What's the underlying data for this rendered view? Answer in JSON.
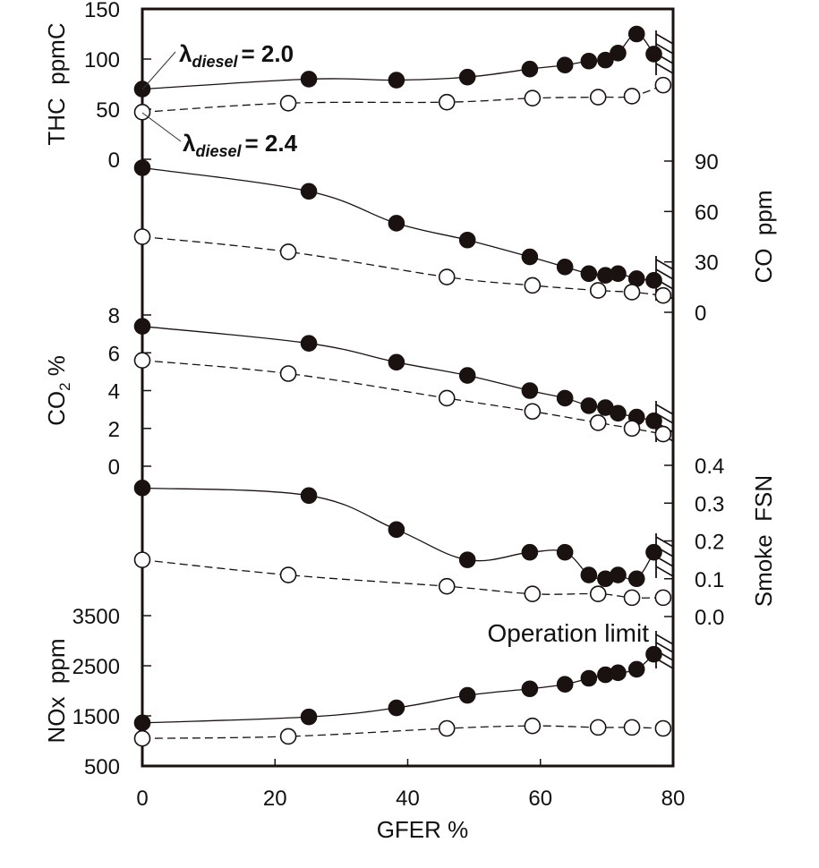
{
  "chart_data": {
    "type": "line",
    "layout": "stacked-panels-shared-x",
    "title": "",
    "xlabel": "GFER  %",
    "xlim": [
      0,
      80
    ],
    "xticks": [
      0,
      20,
      40,
      60,
      80
    ],
    "grid": false,
    "series_styles": [
      {
        "name": "λdiesel = 2.0",
        "marker": "filled-circle",
        "line": "solid",
        "color": "#1a1111"
      },
      {
        "name": "λdiesel = 2.4",
        "marker": "open-circle",
        "line": "dashed",
        "color": "#1a1111"
      }
    ],
    "annotations": {
      "lambda_20": {
        "lambda": "λ",
        "sub": "diesel",
        "value": "= 2.0"
      },
      "lambda_24": {
        "lambda": "λ",
        "sub": "diesel",
        "value": "= 2.4"
      },
      "operation_limit": "Operation limit"
    },
    "panels": [
      {
        "id": "thc",
        "ylabel": "THC  ppmC",
        "axis_side": "left",
        "ylim": [
          0,
          150
        ],
        "yticks": [
          0,
          50,
          100,
          150
        ],
        "series": [
          {
            "name": "λdiesel = 2.0",
            "x": [
              0,
              25.1,
              38.3,
              49.0,
              58.4,
              63.7,
              67.3,
              69.8,
              71.7,
              74.5,
              77.1
            ],
            "y": [
              70,
              80,
              79,
              82,
              90,
              94,
              98,
              99,
              106,
              125,
              105
            ]
          },
          {
            "name": "λdiesel = 2.4",
            "x": [
              0,
              22.0,
              45.9,
              58.8,
              68.7,
              73.8,
              78.5
            ],
            "y": [
              47,
              56,
              57,
              61,
              62,
              63,
              74
            ]
          }
        ]
      },
      {
        "id": "co",
        "ylabel": "CO  ppm",
        "axis_side": "right",
        "ylim": [
          0,
          90
        ],
        "yticks": [
          0,
          30,
          60,
          90
        ],
        "series": [
          {
            "name": "λdiesel = 2.0",
            "x": [
              0,
              25.1,
              38.3,
              49.0,
              58.4,
              63.7,
              67.3,
              69.8,
              71.7,
              74.5,
              77.1
            ],
            "y": [
              86,
              72,
              53,
              43,
              33,
              27,
              23,
              22,
              23,
              20,
              19
            ]
          },
          {
            "name": "λdiesel = 2.4",
            "x": [
              0,
              22.0,
              45.9,
              58.8,
              68.7,
              73.8,
              78.5
            ],
            "y": [
              45,
              36,
              21,
              16,
              13,
              12,
              10
            ]
          }
        ]
      },
      {
        "id": "co2",
        "ylabel": "CO2  %",
        "ylabel_main": "CO",
        "ylabel_sub": "2",
        "ylabel_unit": "%",
        "axis_side": "left",
        "ylim": [
          0,
          8
        ],
        "yticks": [
          0,
          2,
          4,
          6,
          8
        ],
        "series": [
          {
            "name": "λdiesel = 2.0",
            "x": [
              0,
              25.1,
              38.3,
              49.0,
              58.4,
              63.7,
              67.3,
              69.8,
              71.7,
              74.5,
              77.1
            ],
            "y": [
              7.4,
              6.5,
              5.5,
              4.8,
              4.0,
              3.6,
              3.2,
              3.1,
              2.8,
              2.6,
              2.4
            ]
          },
          {
            "name": "λdiesel = 2.4",
            "x": [
              0,
              22.0,
              45.9,
              58.8,
              68.7,
              73.8,
              78.5
            ],
            "y": [
              5.6,
              4.9,
              3.6,
              2.9,
              2.3,
              2.0,
              1.7
            ]
          }
        ]
      },
      {
        "id": "smoke",
        "ylabel": "Smoke  FSN",
        "axis_side": "right",
        "ylim": [
          0.0,
          0.4
        ],
        "yticks": [
          0.0,
          0.1,
          0.2,
          0.3,
          0.4
        ],
        "ytick_labels": [
          "0.0",
          "0.1",
          "0.2",
          "0.3",
          "0.4"
        ],
        "series": [
          {
            "name": "λdiesel = 2.0",
            "x": [
              0,
              25.1,
              38.3,
              49.0,
              58.4,
              63.7,
              67.3,
              69.8,
              71.7,
              74.5,
              77.1
            ],
            "y": [
              0.34,
              0.32,
              0.23,
              0.15,
              0.17,
              0.17,
              0.11,
              0.1,
              0.11,
              0.1,
              0.17
            ]
          },
          {
            "name": "λdiesel = 2.4",
            "x": [
              0,
              22.0,
              45.9,
              58.8,
              68.7,
              73.8,
              78.5
            ],
            "y": [
              0.15,
              0.11,
              0.08,
              0.06,
              0.06,
              0.05,
              0.05
            ]
          }
        ]
      },
      {
        "id": "nox",
        "ylabel": "NOx  ppm",
        "axis_side": "left",
        "ylim": [
          500,
          3500
        ],
        "yticks": [
          500,
          1500,
          2500,
          3500
        ],
        "series": [
          {
            "name": "λdiesel = 2.0",
            "x": [
              0,
              25.1,
              38.3,
              49.0,
              58.4,
              63.7,
              67.3,
              69.8,
              71.7,
              74.5,
              77.1
            ],
            "y": [
              1360,
              1480,
              1660,
              1910,
              2040,
              2130,
              2250,
              2320,
              2360,
              2430,
              2730
            ]
          },
          {
            "name": "λdiesel = 2.4",
            "x": [
              0,
              22.0,
              45.9,
              58.8,
              68.7,
              73.8,
              78.5
            ],
            "y": [
              1050,
              1090,
              1250,
              1300,
              1270,
              1270,
              1250
            ]
          }
        ]
      }
    ]
  }
}
